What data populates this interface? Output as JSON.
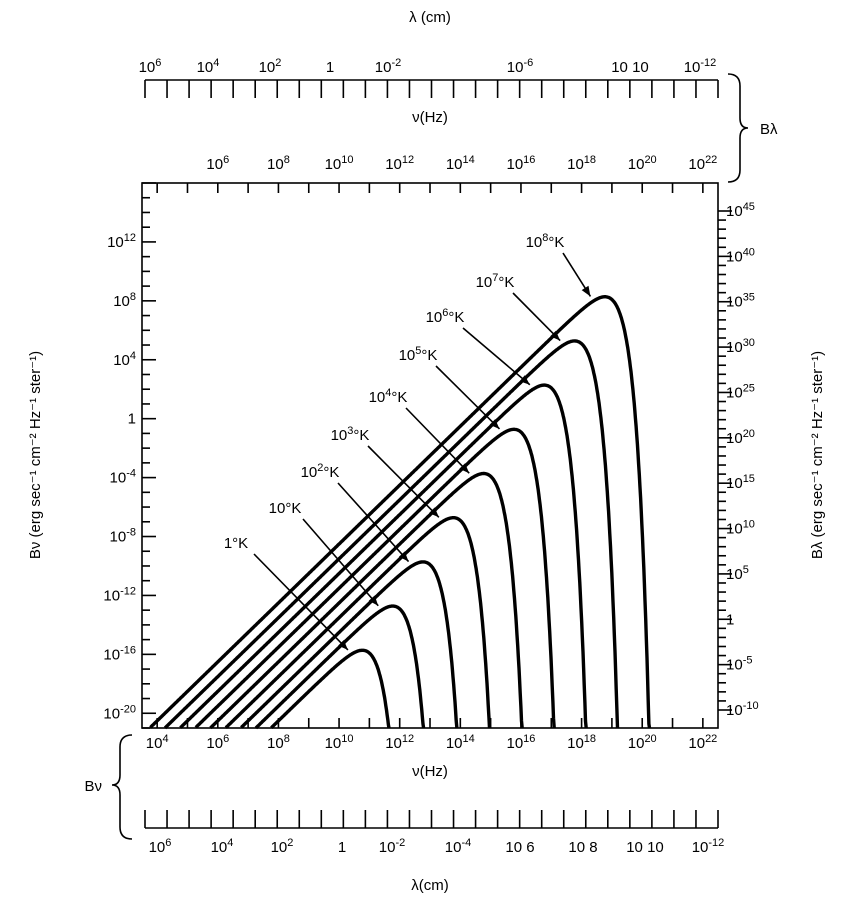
{
  "chart_data": {
    "type": "line",
    "x_scale": "log",
    "y_scale": "log",
    "xlim": [
      3160.0,
      3.16e+22
    ],
    "ylim": [
      1e-21,
      1e+16
    ],
    "grid": false,
    "xlabel": "ν(Hz)",
    "ylabel_left": "Bν (erg sec⁻¹ cm⁻² Hz⁻¹ ster⁻¹)",
    "ylabel_right": "Bλ (erg sec⁻¹ cm⁻² Hz⁻¹ ster⁻¹)",
    "bottom_freq_ticks": [
      "10^4",
      "10^6",
      "10^8",
      "10^10",
      "10^12",
      "10^14",
      "10^16",
      "10^18",
      "10^20",
      "10^22"
    ],
    "top_freq_ticks": [
      "10^6",
      "10^8",
      "10^10",
      "10^12",
      "10^14",
      "10^16",
      "10^18",
      "10^20",
      "10^22"
    ],
    "left_ticks": [
      "10^12",
      "10^8",
      "10^4",
      "1",
      "10^-4",
      "10^-8",
      "10^-12",
      "10^-16",
      "10^-20"
    ],
    "right_ticks": [
      "10^45",
      "10^40",
      "10^35",
      "10^30",
      "10^25",
      "10^20",
      "10^15",
      "10^10",
      "10^5",
      "1",
      "10^-5",
      "10^-10"
    ],
    "top_lambda_ticks": [
      "10^6",
      "10^4",
      "10^2",
      "1",
      "10^-2",
      "10^-6",
      "10  10",
      "10^-12"
    ],
    "bottom_lambda_ticks": [
      "10^6",
      "10^4",
      "10^2",
      "1",
      "10^-2",
      "10^-4",
      "10 6",
      "10 8",
      "10 10",
      "10^-12"
    ],
    "top_lambda_label": "λ (cm)",
    "top_nu_label": "ν(Hz)",
    "bottom_lambda_label": "λ(cm)",
    "brace_top_label": "Bλ",
    "brace_bottom_label": "Bν",
    "series": [
      {
        "name": "1°K",
        "temperature": 1,
        "peak": {
          "x": 59000000000.0,
          "y": 2.1e-17
        }
      },
      {
        "name": "10°K",
        "temperature": 10,
        "peak": {
          "x": 590000000000.0,
          "y": 2.1e-14
        }
      },
      {
        "name": "10²°K",
        "temperature": 100,
        "peak": {
          "x": 5900000000000.0,
          "y": 2.1e-11
        }
      },
      {
        "name": "10³°K",
        "temperature": 1000,
        "peak": {
          "x": 59000000000000.0,
          "y": 2.1e-08
        }
      },
      {
        "name": "10⁴°K",
        "temperature": 10000.0,
        "peak": {
          "x": 590000000000000.0,
          "y": 2.1e-05
        }
      },
      {
        "name": "10⁵°K",
        "temperature": 100000.0,
        "peak": {
          "x": 5900000000000000.0,
          "y": 0.021
        }
      },
      {
        "name": "10⁶°K",
        "temperature": 1000000.0,
        "peak": {
          "x": 5.9e+16,
          "y": 21
        }
      },
      {
        "name": "10⁷°K",
        "temperature": 10000000.0,
        "peak": {
          "x": 5.9e+17,
          "y": 21000.0
        }
      },
      {
        "name": "10⁸°K",
        "temperature": 100000000.0,
        "peak": {
          "x": 5.9e+18,
          "y": 21000000.0
        }
      }
    ]
  }
}
